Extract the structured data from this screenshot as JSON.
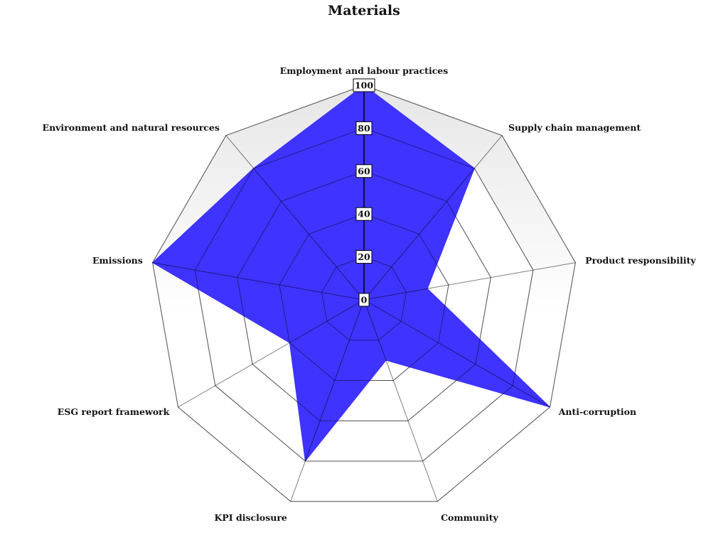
{
  "chart_data": {
    "type": "radar",
    "title": "Materials",
    "axes": [
      "Employment and labour practices",
      "Supply chain management",
      "Product responsibility",
      "Anti-corruption",
      "Community",
      "KPI disclosure",
      "ESG report framework",
      "Emissions",
      "Environment and natural resources"
    ],
    "series": [
      {
        "values": [
          100,
          80,
          30,
          100,
          30,
          80,
          40,
          100,
          80
        ]
      }
    ],
    "ticks": [
      0,
      20,
      40,
      60,
      80,
      100
    ],
    "range": [
      0,
      100
    ],
    "fill_color": "#3e33ff",
    "grid_color": "#999999",
    "band_color": "#ececec"
  }
}
